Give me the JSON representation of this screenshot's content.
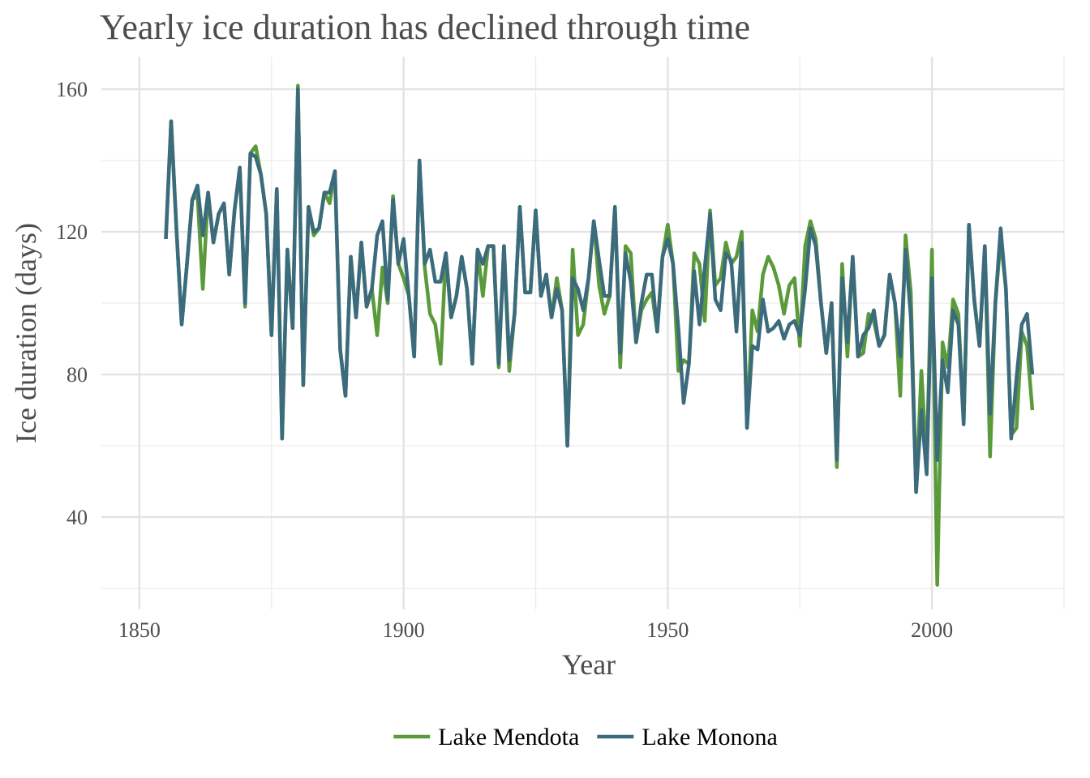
{
  "chart_data": {
    "type": "line",
    "title": "Yearly ice duration has declined through time",
    "x_label": "Year",
    "y_label": "Ice duration (days)",
    "x": [
      1855,
      1856,
      1857,
      1858,
      1859,
      1860,
      1861,
      1862,
      1863,
      1864,
      1865,
      1866,
      1867,
      1868,
      1869,
      1870,
      1871,
      1872,
      1873,
      1874,
      1875,
      1876,
      1877,
      1878,
      1879,
      1880,
      1881,
      1882,
      1883,
      1884,
      1885,
      1886,
      1887,
      1888,
      1889,
      1890,
      1891,
      1892,
      1893,
      1894,
      1895,
      1896,
      1897,
      1898,
      1899,
      1900,
      1901,
      1902,
      1903,
      1904,
      1905,
      1906,
      1907,
      1908,
      1909,
      1910,
      1911,
      1912,
      1913,
      1914,
      1915,
      1916,
      1917,
      1918,
      1919,
      1920,
      1921,
      1922,
      1923,
      1924,
      1925,
      1926,
      1927,
      1928,
      1929,
      1930,
      1931,
      1932,
      1933,
      1934,
      1935,
      1936,
      1937,
      1938,
      1939,
      1940,
      1941,
      1942,
      1943,
      1944,
      1945,
      1946,
      1947,
      1948,
      1949,
      1950,
      1951,
      1952,
      1953,
      1954,
      1955,
      1956,
      1957,
      1958,
      1959,
      1960,
      1961,
      1962,
      1963,
      1964,
      1965,
      1966,
      1967,
      1968,
      1969,
      1970,
      1971,
      1972,
      1973,
      1974,
      1975,
      1976,
      1977,
      1978,
      1979,
      1980,
      1981,
      1982,
      1983,
      1984,
      1985,
      1986,
      1987,
      1988,
      1989,
      1990,
      1991,
      1992,
      1993,
      1994,
      1995,
      1996,
      1997,
      1998,
      1999,
      2000,
      2001,
      2002,
      2003,
      2004,
      2005,
      2006,
      2007,
      2008,
      2009,
      2010,
      2011,
      2012,
      2013,
      2014,
      2015,
      2016,
      2017,
      2018,
      2019
    ],
    "series": [
      {
        "name": "Lake Mendota",
        "color": "#5a9a3a",
        "values": [
          118,
          151,
          121,
          94,
          111,
          129,
          130,
          104,
          131,
          117,
          125,
          128,
          108,
          126,
          138,
          99,
          142,
          144,
          136,
          125,
          91,
          132,
          62,
          115,
          93,
          161,
          77,
          127,
          119,
          121,
          131,
          128,
          137,
          87,
          74,
          113,
          96,
          117,
          99,
          104,
          91,
          110,
          100,
          130,
          111,
          107,
          102,
          85,
          140,
          110,
          97,
          94,
          83,
          114,
          96,
          102,
          113,
          104,
          83,
          115,
          102,
          116,
          116,
          82,
          116,
          81,
          97,
          127,
          103,
          103,
          126,
          102,
          108,
          96,
          107,
          98,
          60,
          115,
          91,
          94,
          107,
          123,
          105,
          97,
          102,
          127,
          82,
          116,
          114,
          89,
          98,
          101,
          103,
          92,
          113,
          122,
          111,
          81,
          84,
          83,
          114,
          111,
          95,
          126,
          105,
          107,
          117,
          111,
          113,
          120,
          65,
          98,
          92,
          108,
          113,
          110,
          105,
          97,
          105,
          107,
          88,
          116,
          123,
          118,
          100,
          86,
          100,
          54,
          111,
          85,
          113,
          85,
          86,
          97,
          95,
          88,
          91,
          108,
          100,
          74,
          119,
          103,
          47,
          81,
          55,
          115,
          21,
          89,
          82,
          101,
          97,
          67,
          122,
          101,
          88,
          116,
          57,
          100,
          118,
          104,
          63,
          65,
          92,
          88,
          70
        ]
      },
      {
        "name": "Lake Monona",
        "color": "#3b6b7c",
        "values": [
          118,
          151,
          121,
          94,
          111,
          129,
          133,
          119,
          131,
          117,
          125,
          128,
          108,
          126,
          138,
          100,
          142,
          141,
          136,
          125,
          91,
          132,
          62,
          115,
          93,
          160,
          77,
          127,
          120,
          121,
          131,
          131,
          137,
          87,
          74,
          113,
          96,
          117,
          99,
          104,
          119,
          123,
          101,
          129,
          111,
          118,
          102,
          85,
          140,
          111,
          115,
          106,
          106,
          114,
          96,
          102,
          113,
          104,
          83,
          115,
          111,
          116,
          116,
          83,
          116,
          84,
          97,
          127,
          103,
          103,
          126,
          102,
          108,
          96,
          104,
          98,
          60,
          107,
          104,
          98,
          107,
          123,
          112,
          102,
          102,
          127,
          86,
          114,
          106,
          89,
          100,
          108,
          108,
          92,
          113,
          118,
          111,
          93,
          72,
          83,
          109,
          94,
          110,
          125,
          101,
          98,
          114,
          112,
          92,
          117,
          65,
          88,
          87,
          101,
          92,
          93,
          95,
          90,
          94,
          95,
          91,
          104,
          121,
          116,
          100,
          86,
          100,
          56,
          107,
          89,
          113,
          85,
          91,
          93,
          98,
          88,
          91,
          108,
          100,
          85,
          115,
          96,
          47,
          70,
          52,
          107,
          56,
          84,
          75,
          98,
          94,
          66,
          122,
          101,
          88,
          116,
          69,
          100,
          121,
          104,
          62,
          79,
          94,
          97,
          80
        ]
      }
    ],
    "xlim": [
      1842.8,
      2025
    ],
    "ylim": [
      14.1,
      169.1
    ],
    "xticks": [
      1850,
      1900,
      1950,
      2000
    ],
    "yticks": [
      40,
      80,
      120,
      160
    ],
    "x_minor_ticks": [
      1875,
      1925,
      1975,
      2025
    ],
    "y_minor_ticks": [
      20,
      60,
      100,
      140
    ],
    "grid": true,
    "legend": "bottom"
  }
}
